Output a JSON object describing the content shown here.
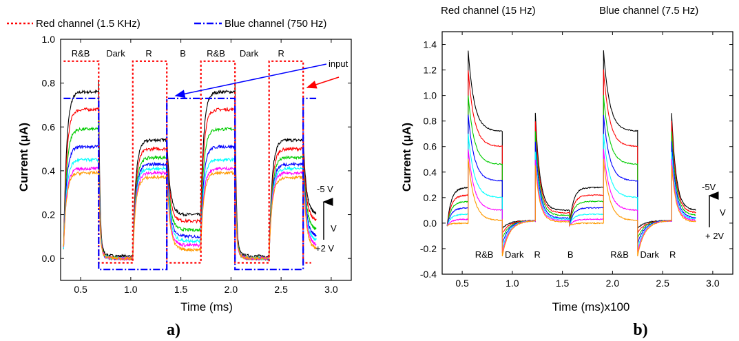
{
  "colors": {
    "black": "#000000",
    "red": "#ff0000",
    "green": "#00cc00",
    "blue": "#0000ff",
    "cyan": "#00ffff",
    "magenta": "#ff00ff",
    "orange": "#ff9900",
    "input_red": "#ff0000",
    "input_blue": "#0000ff"
  },
  "chart_data": [
    {
      "id": "a",
      "type": "line",
      "panel_label": "a)",
      "xlabel": "Time (ms)",
      "ylabel": "Current (μA)",
      "xlim": [
        0.3,
        3.2
      ],
      "ylim": [
        -0.1,
        1.0
      ],
      "xticks": [
        "0.5",
        "1.0",
        "1.5",
        "2.0",
        "2.5",
        "3.0"
      ],
      "xtick_values": [
        0.5,
        1.0,
        1.5,
        2.0,
        2.5,
        3.0
      ],
      "yticks": [
        "0.0",
        "0.2",
        "0.4",
        "0.6",
        "0.8",
        "1.0"
      ],
      "ytick_values": [
        0.0,
        0.2,
        0.4,
        0.6,
        0.8,
        1.0
      ],
      "legend": [
        {
          "label": "Red channel (1.5 KHz)",
          "style": "dotted",
          "color": "#ff0000"
        },
        {
          "label": "Blue channel (750 Hz)",
          "style": "dashdot",
          "color": "#0000ff"
        }
      ],
      "period_labels": [
        {
          "text": "R&B",
          "x": 0.5
        },
        {
          "text": "Dark",
          "x": 0.85
        },
        {
          "text": "R",
          "x": 1.18
        },
        {
          "text": "B",
          "x": 1.52
        },
        {
          "text": "R&B",
          "x": 1.85
        },
        {
          "text": "Dark",
          "x": 2.18
        },
        {
          "text": "R",
          "x": 2.5
        }
      ],
      "input_label": "input",
      "bias_labels": {
        "top": "-5 V",
        "middle": "V",
        "bottom": "+2 V"
      },
      "input_signals": [
        {
          "name": "red",
          "color": "#ff0000",
          "high": 0.9,
          "low": -0.02,
          "segments": [
            [
              0.33,
              0.68,
              1
            ],
            [
              0.68,
              1.02,
              0
            ],
            [
              1.02,
              1.36,
              1
            ],
            [
              1.36,
              1.7,
              0
            ],
            [
              1.7,
              2.04,
              1
            ],
            [
              2.04,
              2.38,
              0
            ],
            [
              2.38,
              2.72,
              1
            ],
            [
              2.72,
              2.8,
              0
            ]
          ]
        },
        {
          "name": "blue",
          "color": "#0000ff",
          "high": 0.73,
          "low": -0.05,
          "segments": [
            [
              0.33,
              0.68,
              1
            ],
            [
              0.68,
              1.36,
              0
            ],
            [
              1.36,
              2.04,
              1
            ],
            [
              2.04,
              2.72,
              0
            ],
            [
              2.72,
              2.85,
              1
            ]
          ]
        }
      ],
      "phases": [
        {
          "start": 0.33,
          "end": 0.68,
          "kind": "RB"
        },
        {
          "start": 0.68,
          "end": 1.02,
          "kind": "dark"
        },
        {
          "start": 1.02,
          "end": 1.36,
          "kind": "R"
        },
        {
          "start": 1.36,
          "end": 1.7,
          "kind": "B"
        },
        {
          "start": 1.7,
          "end": 2.04,
          "kind": "RB"
        },
        {
          "start": 2.04,
          "end": 2.38,
          "kind": "dark"
        },
        {
          "start": 2.38,
          "end": 2.72,
          "kind": "R"
        },
        {
          "start": 2.72,
          "end": 2.85,
          "kind": "B"
        }
      ],
      "series": [
        {
          "color": "#000000",
          "levels": {
            "RB": 0.78,
            "R": 0.56,
            "B": 0.22,
            "dark": 0.01
          }
        },
        {
          "color": "#ff0000",
          "levels": {
            "RB": 0.7,
            "R": 0.52,
            "B": 0.19,
            "dark": 0.0
          }
        },
        {
          "color": "#00cc00",
          "levels": {
            "RB": 0.61,
            "R": 0.48,
            "B": 0.15,
            "dark": 0.0
          }
        },
        {
          "color": "#0000ff",
          "levels": {
            "RB": 0.53,
            "R": 0.45,
            "B": 0.12,
            "dark": 0.0
          }
        },
        {
          "color": "#00ffff",
          "levels": {
            "RB": 0.47,
            "R": 0.43,
            "B": 0.1,
            "dark": 0.0
          }
        },
        {
          "color": "#ff00ff",
          "levels": {
            "RB": 0.43,
            "R": 0.41,
            "B": 0.08,
            "dark": 0.0
          }
        },
        {
          "color": "#ff9900",
          "levels": {
            "RB": 0.41,
            "R": 0.39,
            "B": 0.06,
            "dark": 0.0
          }
        }
      ]
    },
    {
      "id": "b",
      "type": "line",
      "panel_label": "b)",
      "xlabel": "Time (ms)x100",
      "ylabel": "Current (μA)",
      "xlim": [
        0.3,
        3.2
      ],
      "ylim": [
        -0.4,
        1.5
      ],
      "xticks": [
        "0.5",
        "1.0",
        "1.5",
        "2.0",
        "2.5",
        "3.0"
      ],
      "xtick_values": [
        0.5,
        1.0,
        1.5,
        2.0,
        2.5,
        3.0
      ],
      "yticks": [
        "-0.4",
        "-0.2",
        "0.0",
        "0.2",
        "0.4",
        "0.6",
        "0.8",
        "1.0",
        "1.2",
        "1.4"
      ],
      "ytick_values": [
        -0.4,
        -0.2,
        0.0,
        0.2,
        0.4,
        0.6,
        0.8,
        1.0,
        1.2,
        1.4
      ],
      "top_labels": [
        "Red channel (15 Hz)",
        "Blue channel (7.5 Hz)"
      ],
      "period_labels": [
        {
          "text": "R&B",
          "x": 0.72
        },
        {
          "text": "Dark",
          "x": 1.02
        },
        {
          "text": "R",
          "x": 1.25
        },
        {
          "text": "B",
          "x": 1.58
        },
        {
          "text": "R&B",
          "x": 2.07
        },
        {
          "text": "Dark",
          "x": 2.37
        },
        {
          "text": "R",
          "x": 2.6
        }
      ],
      "bias_labels": {
        "top": "-5V",
        "middle": "V",
        "bottom": "+ 2V"
      },
      "phases": [
        {
          "start": 0.35,
          "end": 0.56,
          "kind": "B"
        },
        {
          "start": 0.56,
          "end": 0.9,
          "kind": "RB"
        },
        {
          "start": 0.9,
          "end": 1.23,
          "kind": "dark"
        },
        {
          "start": 1.23,
          "end": 1.57,
          "kind": "R"
        },
        {
          "start": 1.57,
          "end": 1.91,
          "kind": "B"
        },
        {
          "start": 1.91,
          "end": 2.25,
          "kind": "RB"
        },
        {
          "start": 2.25,
          "end": 2.59,
          "kind": "dark"
        },
        {
          "start": 2.59,
          "end": 2.83,
          "kind": "R"
        }
      ],
      "series": [
        {
          "color": "#000000",
          "peak": 1.35,
          "plateau": 0.72,
          "b_level": 0.28,
          "r_peak": 0.86,
          "r_end": 0.1,
          "dark_dip": -0.06
        },
        {
          "color": "#ff0000",
          "peak": 1.2,
          "plateau": 0.6,
          "b_level": 0.22,
          "r_peak": 0.8,
          "r_end": 0.08,
          "dark_dip": -0.1
        },
        {
          "color": "#00cc00",
          "peak": 1.0,
          "plateau": 0.46,
          "b_level": 0.17,
          "r_peak": 0.72,
          "r_end": 0.06,
          "dark_dip": -0.14
        },
        {
          "color": "#0000ff",
          "peak": 0.85,
          "plateau": 0.33,
          "b_level": 0.12,
          "r_peak": 0.64,
          "r_end": 0.04,
          "dark_dip": -0.18
        },
        {
          "color": "#00ffff",
          "peak": 0.7,
          "plateau": 0.2,
          "b_level": 0.07,
          "r_peak": 0.56,
          "r_end": 0.03,
          "dark_dip": -0.22
        },
        {
          "color": "#ff00ff",
          "peak": 0.58,
          "plateau": 0.1,
          "b_level": 0.03,
          "r_peak": 0.5,
          "r_end": 0.02,
          "dark_dip": -0.25
        },
        {
          "color": "#ff9900",
          "peak": 0.5,
          "plateau": 0.02,
          "b_level": 0.0,
          "r_peak": 0.45,
          "r_end": 0.01,
          "dark_dip": -0.28
        }
      ]
    }
  ]
}
